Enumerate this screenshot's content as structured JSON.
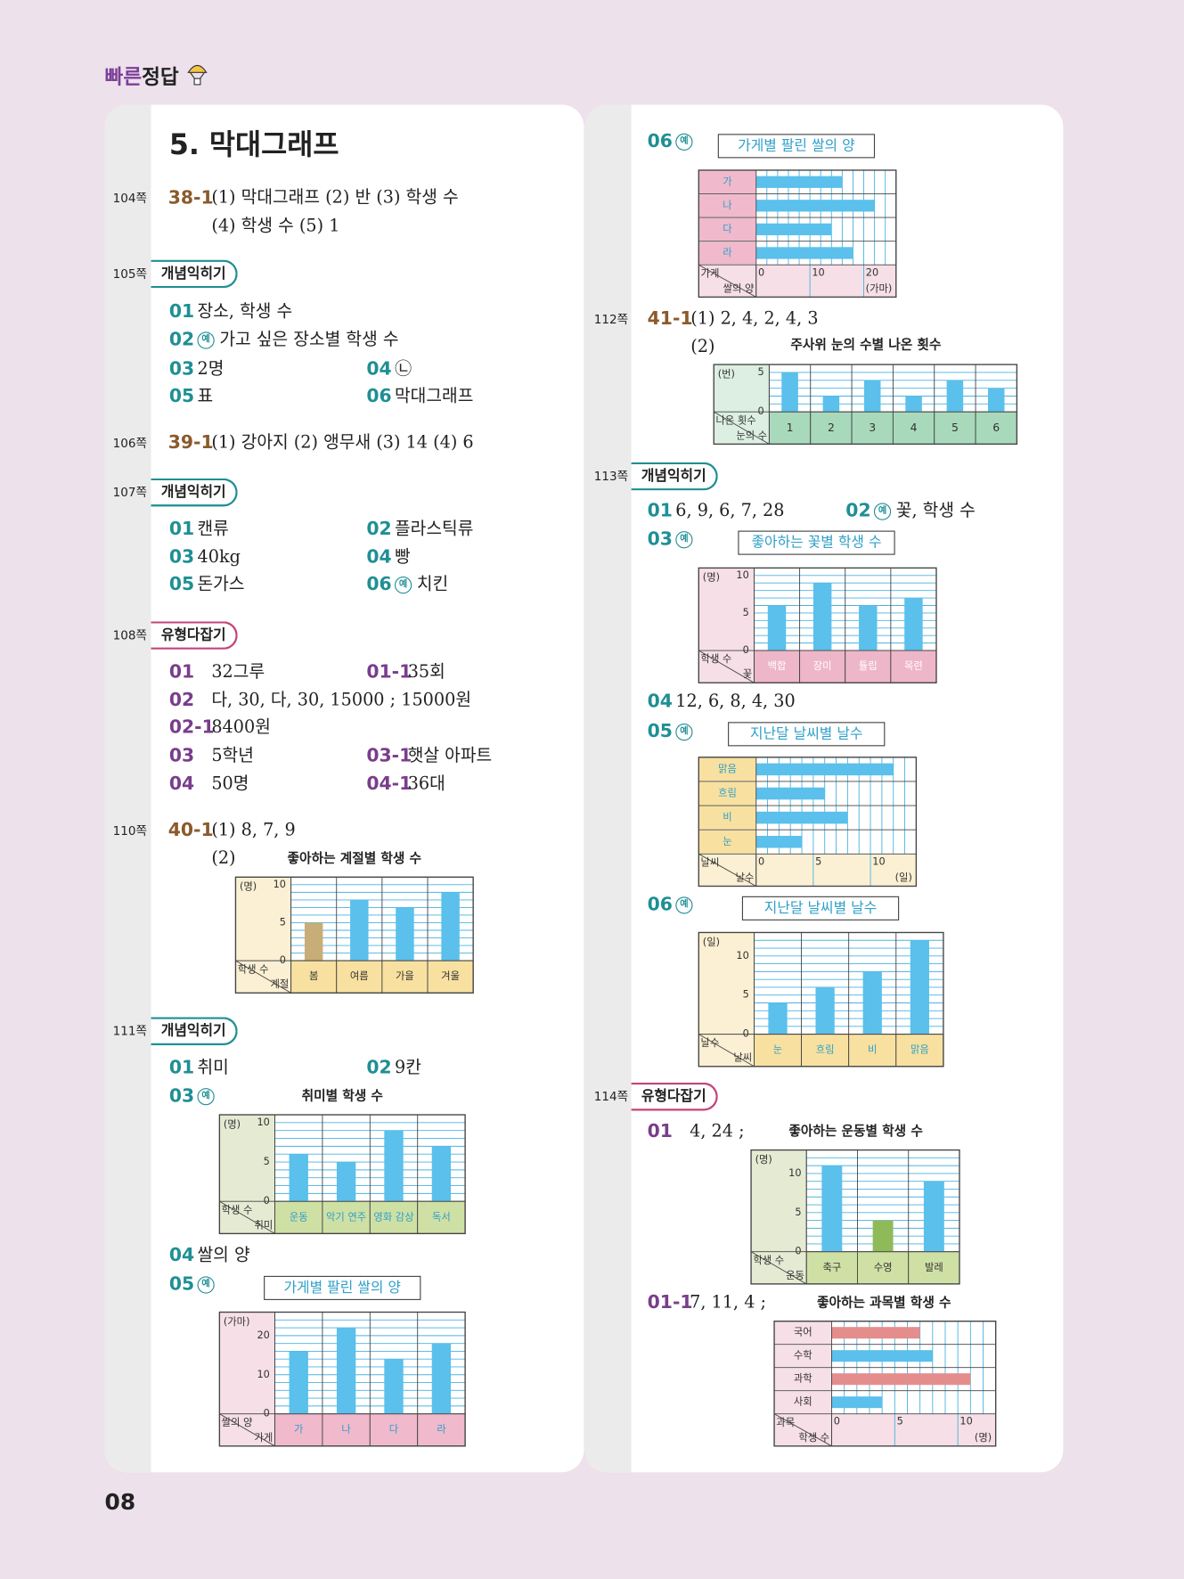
{
  "header": {
    "brand_a": "빠른",
    "brand_b": "정답"
  },
  "page_number": "08",
  "section_title": "5. 막대그래프",
  "page_refs": [
    "104쪽",
    "105쪽",
    "106쪽",
    "107쪽",
    "108쪽",
    "110쪽",
    "111쪽",
    "112쪽",
    "113쪽",
    "114쪽"
  ],
  "badges": [
    "개념익히기",
    "개념익히기",
    "유형다잡기",
    "개념익히기",
    "개념익히기",
    "유형다잡기"
  ],
  "answers": [
    {
      "num": "38-1",
      "text": "(1) 막대그래프 (2) 반 (3) 학생 수",
      "text2": "(4) 학생 수 (5) 1"
    },
    {
      "num": "01",
      "text": "장소, 학생 수"
    },
    {
      "num": "02",
      "ex": "예",
      "text": "가고 싶은 장소별 학생 수"
    },
    {
      "num": "03",
      "text": "2명"
    },
    {
      "num": "04",
      "text": "㉡"
    },
    {
      "num": "05",
      "text": "표"
    },
    {
      "num": "06",
      "text": "막대그래프"
    },
    {
      "num": "39-1",
      "text": "(1) 강아지 (2) 앵무새 (3) 14 (4) 6"
    },
    {
      "num": "01",
      "text": "캔류"
    },
    {
      "num": "02",
      "text": "플라스틱류"
    },
    {
      "num": "03",
      "text": "40kg"
    },
    {
      "num": "04",
      "text": "빵"
    },
    {
      "num": "05",
      "text": "돈가스"
    },
    {
      "num": "06",
      "ex": "예",
      "text": "치킨"
    },
    {
      "num": "01",
      "text": "32그루"
    },
    {
      "num": "01-1",
      "text": "35회"
    },
    {
      "num": "02",
      "text": "다, 30, 다, 30, 15000 ; 15000원"
    },
    {
      "num": "02-1",
      "text": "8400원"
    },
    {
      "num": "03",
      "text": "5학년"
    },
    {
      "num": "03-1",
      "text": "햇살 아파트"
    },
    {
      "num": "04",
      "text": "50명"
    },
    {
      "num": "04-1",
      "text": "36대"
    },
    {
      "num": "40-1",
      "text": "(1) 8, 7, 9",
      "text2": "(2)"
    },
    {
      "num": "01",
      "text": "취미"
    },
    {
      "num": "02",
      "text": "9칸"
    },
    {
      "num": "03",
      "ex": "예"
    },
    {
      "num": "04",
      "text": "쌀의 양"
    },
    {
      "num": "05",
      "ex": "예"
    },
    {
      "num": "06",
      "ex": "예"
    },
    {
      "num": "41-1",
      "text": "(1) 2, 4, 2, 4, 3",
      "text2": "(2)"
    },
    {
      "num": "01",
      "text": "6, 9, 6, 7, 28"
    },
    {
      "num": "02",
      "ex": "예",
      "text": "꽃, 학생 수"
    },
    {
      "num": "03",
      "ex": "예"
    },
    {
      "num": "04",
      "text": "12, 6, 8, 4, 30"
    },
    {
      "num": "05",
      "ex": "예"
    },
    {
      "num": "06",
      "ex": "예"
    },
    {
      "num": "01",
      "text": "4, 24 ;"
    },
    {
      "num": "01-1",
      "text": "7, 11, 4 ;"
    }
  ],
  "charts": [
    {
      "type": "bar",
      "orient": "vertical",
      "title": "좋아하는 계절별 학생 수",
      "categories": [
        "봄",
        "여름",
        "가을",
        "겨울"
      ],
      "values": [
        5,
        8,
        7,
        9
      ],
      "color": "#5bc0eb",
      "colors": [
        "#c8ad78",
        "#5bc0eb",
        "#5bc0eb",
        "#5bc0eb"
      ],
      "ylim": [
        0,
        11
      ],
      "yticks": [
        0,
        5,
        10
      ],
      "unit": "(명)",
      "corner": [
        "학생 수",
        "계절"
      ],
      "panel_color": "#fbf0d3",
      "cell_color": "#f8e1a0",
      "label_color": "#333333"
    },
    {
      "type": "bar",
      "orient": "vertical",
      "title": "취미별 학생 수",
      "categories": [
        "운동",
        "악기 연주",
        "영화 감상",
        "독서"
      ],
      "values": [
        6,
        5,
        9,
        7
      ],
      "color": "#5bc0eb",
      "ylim": [
        0,
        11
      ],
      "yticks": [
        0,
        5,
        10
      ],
      "unit": "(명)",
      "corner": [
        "학생 수",
        "취미"
      ],
      "panel_color": "#e5ebd3",
      "cell_color": "#cfe0a5",
      "label_color": "#2f9fc9"
    },
    {
      "type": "bar",
      "orient": "vertical",
      "title": "가게별 팔린 쌀의 양",
      "categories": [
        "가",
        "나",
        "다",
        "라"
      ],
      "values": [
        16,
        22,
        14,
        18
      ],
      "color": "#5bc0eb",
      "ylim": [
        0,
        26
      ],
      "yticks": [
        0,
        10,
        20
      ],
      "unit": "(가마)",
      "corner": [
        "쌀의 양",
        "가게"
      ],
      "panel_color": "#f6dfe6",
      "cell_color": "#f0b9cc",
      "label_color": "#2f9fc9"
    },
    {
      "type": "bar",
      "orient": "horizontal",
      "title": "가게별 팔린 쌀의 양",
      "categories": [
        "가",
        "나",
        "다",
        "라"
      ],
      "values": [
        16,
        22,
        14,
        18
      ],
      "color": "#5bc0eb",
      "xlim": [
        0,
        26
      ],
      "xticks": [
        0,
        10,
        20
      ],
      "unit": "(가마)",
      "corner": [
        "가게",
        "쌀의 양"
      ],
      "panel_color": "#f6dfe6",
      "cell_color": "#f0b9cc",
      "label_color": "#2f9fc9"
    },
    {
      "type": "bar",
      "orient": "vertical",
      "title": "주사위 눈의 수별 나온 횟수",
      "categories": [
        "1",
        "2",
        "3",
        "4",
        "5",
        "6"
      ],
      "values": [
        5,
        2,
        4,
        2,
        4,
        3
      ],
      "color": "#5bc0eb",
      "ylim": [
        0,
        6
      ],
      "yticks": [
        0,
        5
      ],
      "unit": "(번)",
      "corner": [
        "나온 횟수",
        "눈의 수"
      ],
      "panel_color": "#dcefe2",
      "cell_color": "#a9d9bb",
      "label_color": "#333333"
    },
    {
      "type": "bar",
      "orient": "vertical",
      "title": "좋아하는 꽃별 학생 수",
      "categories": [
        "백합",
        "장미",
        "튤립",
        "목련"
      ],
      "values": [
        6,
        9,
        6,
        7
      ],
      "color": "#5bc0eb",
      "ylim": [
        0,
        11
      ],
      "yticks": [
        0,
        5,
        10
      ],
      "unit": "(명)",
      "corner": [
        "학생 수",
        "꽃"
      ],
      "panel_color": "#f6dfe6",
      "cell_color": "#eeb6c9",
      "label_color": "#ffffff"
    },
    {
      "type": "bar",
      "orient": "horizontal",
      "title": "지난달 날씨별 날수",
      "categories": [
        "맑음",
        "흐림",
        "비",
        "눈"
      ],
      "values": [
        12,
        6,
        8,
        4
      ],
      "color": "#5bc0eb",
      "xlim": [
        0,
        14
      ],
      "xticks": [
        0,
        5,
        10
      ],
      "unit": "(일)",
      "corner": [
        "날씨",
        "날수"
      ],
      "panel_color": "#fbf0d3",
      "cell_color": "#f8e1a0",
      "label_color": "#2f9fc9"
    },
    {
      "type": "bar",
      "orient": "vertical",
      "title": "지난달 날씨별 날수",
      "categories": [
        "눈",
        "흐림",
        "비",
        "맑음"
      ],
      "values": [
        4,
        6,
        8,
        12
      ],
      "color": "#5bc0eb",
      "ylim": [
        0,
        13
      ],
      "yticks": [
        0,
        5,
        10
      ],
      "unit": "(일)",
      "corner": [
        "날수",
        "날씨"
      ],
      "panel_color": "#fbf0d3",
      "cell_color": "#f8e1a0",
      "label_color": "#2f9fc9"
    },
    {
      "type": "bar",
      "orient": "vertical",
      "title": "좋아하는 운동별 학생 수",
      "categories": [
        "축구",
        "수영",
        "발레"
      ],
      "values": [
        11,
        4,
        9
      ],
      "color": "#5bc0eb",
      "colors": [
        "#5bc0eb",
        "#8fba5a",
        "#5bc0eb"
      ],
      "ylim": [
        0,
        13
      ],
      "yticks": [
        0,
        5,
        10
      ],
      "unit": "(명)",
      "corner": [
        "학생 수",
        "운동"
      ],
      "panel_color": "#e5ebd3",
      "cell_color": "#cfe0a5",
      "label_color": "#333333"
    },
    {
      "type": "bar",
      "orient": "horizontal",
      "title": "좋아하는 과목별 학생 수",
      "categories": [
        "국어",
        "수학",
        "과학",
        "사회"
      ],
      "values": [
        7,
        8,
        11,
        4
      ],
      "color": "#5bc0eb",
      "colors": [
        "#e58d8d",
        "#5bc0eb",
        "#e58d8d",
        "#5bc0eb"
      ],
      "xlim": [
        0,
        13
      ],
      "xticks": [
        0,
        5,
        10
      ],
      "unit": "(명)",
      "corner": [
        "과목",
        "학생 수"
      ],
      "panel_color": "#f6dfe6",
      "cell_color": "#f6dfe6",
      "label_color": "#333333"
    }
  ]
}
